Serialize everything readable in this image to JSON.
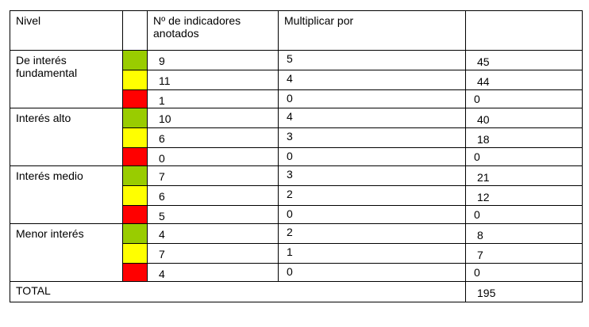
{
  "colors": {
    "green": "#99cc00",
    "yellow": "#ffff00",
    "red": "#ff0000"
  },
  "header": {
    "nivel": "Nivel",
    "indicadores": "Nº de indicadores anotados",
    "multiplicar": "Multiplicar por",
    "resultado": ""
  },
  "groups": [
    {
      "level": "De interés fundamental",
      "rows": [
        {
          "color": "green",
          "count": "9",
          "mult": "5",
          "result": "45"
        },
        {
          "color": "yellow",
          "count": "11",
          "mult": "4",
          "result": "44"
        },
        {
          "color": "red",
          "count": "1",
          "mult": "0",
          "result": "0"
        }
      ]
    },
    {
      "level": "Interés alto",
      "rows": [
        {
          "color": "green",
          "count": "10",
          "mult": "4",
          "result": "40"
        },
        {
          "color": "yellow",
          "count": "6",
          "mult": "3",
          "result": "18"
        },
        {
          "color": "red",
          "count": "0",
          "mult": "0",
          "result": "0"
        }
      ]
    },
    {
      "level": "Interés medio",
      "rows": [
        {
          "color": "green",
          "count": "7",
          "mult": "3",
          "result": "21"
        },
        {
          "color": "yellow",
          "count": "6",
          "mult": "2",
          "result": "12"
        },
        {
          "color": "red",
          "count": "5",
          "mult": "0",
          "result": "0"
        }
      ]
    },
    {
      "level": "Menor interés",
      "rows": [
        {
          "color": "green",
          "count": "4",
          "mult": "2",
          "result": "8"
        },
        {
          "color": "yellow",
          "count": "7",
          "mult": "1",
          "result": "7"
        },
        {
          "color": "red",
          "count": "4",
          "mult": "0",
          "result": "0"
        }
      ]
    }
  ],
  "total": {
    "label": "TOTAL",
    "value": "195"
  }
}
